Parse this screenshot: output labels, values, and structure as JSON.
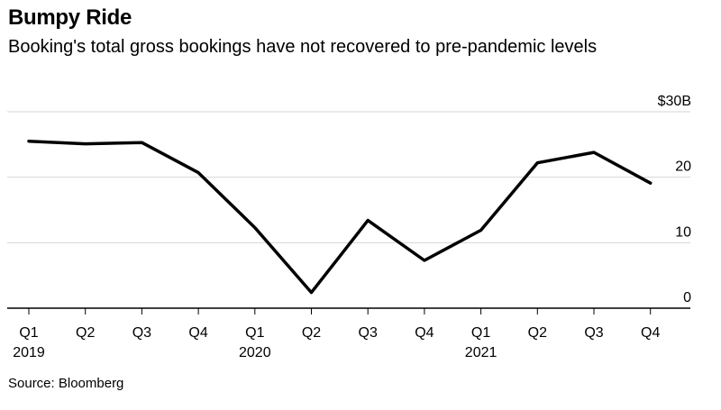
{
  "title": "Bumpy Ride",
  "subtitle": "Booking's total gross bookings have not recovered to pre-pandemic levels",
  "source": "Source: Bloomberg",
  "chart_data": {
    "type": "line",
    "title": "Bumpy Ride",
    "subtitle": "Booking's total gross bookings have not recovered to pre-pandemic levels",
    "xlabel": "",
    "ylabel": "",
    "ylim": [
      0,
      30
    ],
    "y_ticks": [
      {
        "value": 30,
        "label": "$30B"
      },
      {
        "value": 20,
        "label": "20"
      },
      {
        "value": 10,
        "label": "10"
      },
      {
        "value": 0,
        "label": "0"
      }
    ],
    "grid": true,
    "categories": [
      "Q1",
      "Q2",
      "Q3",
      "Q4",
      "Q1",
      "Q2",
      "Q3",
      "Q4",
      "Q1",
      "Q2",
      "Q3",
      "Q4"
    ],
    "years": [
      {
        "index": 0,
        "label": "2019"
      },
      {
        "index": 4,
        "label": "2020"
      },
      {
        "index": 8,
        "label": "2021"
      }
    ],
    "series": [
      {
        "name": "Total gross bookings",
        "color": "#000000",
        "values": [
          25.5,
          25.1,
          25.3,
          20.7,
          12.3,
          2.4,
          13.4,
          7.3,
          11.9,
          22.2,
          23.8,
          19.1
        ]
      }
    ],
    "source": "Source: Bloomberg"
  }
}
